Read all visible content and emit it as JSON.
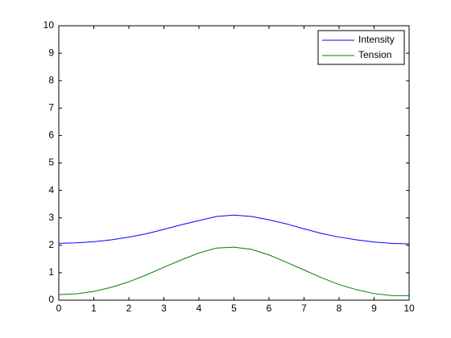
{
  "chart_data": {
    "type": "line",
    "x": [
      0,
      0.5,
      1,
      1.5,
      2,
      2.5,
      3,
      3.5,
      4,
      4.5,
      5,
      5.5,
      6,
      6.5,
      7,
      7.5,
      8,
      8.5,
      9,
      9.5,
      10
    ],
    "series": [
      {
        "name": "Intensity",
        "color": "#0000ff",
        "values": [
          2.07,
          2.09,
          2.13,
          2.2,
          2.3,
          2.42,
          2.58,
          2.75,
          2.9,
          3.05,
          3.1,
          3.05,
          2.93,
          2.78,
          2.6,
          2.43,
          2.3,
          2.2,
          2.12,
          2.07,
          2.05
        ]
      },
      {
        "name": "Tension",
        "color": "#008000",
        "values": [
          0.2,
          0.23,
          0.32,
          0.47,
          0.67,
          0.92,
          1.2,
          1.47,
          1.72,
          1.9,
          1.93,
          1.85,
          1.65,
          1.38,
          1.1,
          0.82,
          0.57,
          0.38,
          0.24,
          0.17,
          0.16
        ]
      }
    ],
    "xlim": [
      0,
      10
    ],
    "xticks": [
      0,
      1,
      2,
      3,
      4,
      5,
      6,
      7,
      8,
      9,
      10
    ],
    "ylim": [
      0,
      10
    ],
    "yticks": [
      0,
      1,
      2,
      3,
      4,
      5,
      6,
      7,
      8,
      9,
      10
    ],
    "legend": "top-right"
  }
}
